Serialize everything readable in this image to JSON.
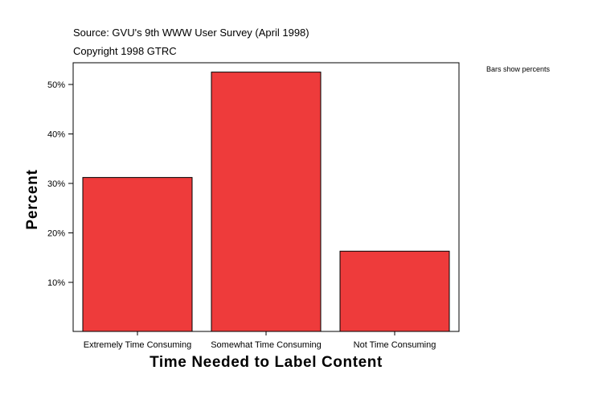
{
  "header": {
    "source": "Source: GVU's 9th WWW User Survey (April 1998)",
    "copyright": "Copyright 1998 GTRC"
  },
  "note": "Bars show percents",
  "chart_data": {
    "type": "bar",
    "xlabel": "Time Needed to Label Content",
    "ylabel": "Percent",
    "categories": [
      "Extremely Time Consuming",
      "Somewhat Time Consuming",
      "Not Time Consuming"
    ],
    "values": [
      31.2,
      52.5,
      16.3
    ],
    "ylim": [
      0,
      55
    ],
    "yticks": [
      10,
      20,
      30,
      40,
      50
    ],
    "ytick_labels": [
      "10%",
      "20%",
      "30%",
      "40%",
      "50%"
    ],
    "bar_color": "#ee3b3b",
    "grid": false
  }
}
